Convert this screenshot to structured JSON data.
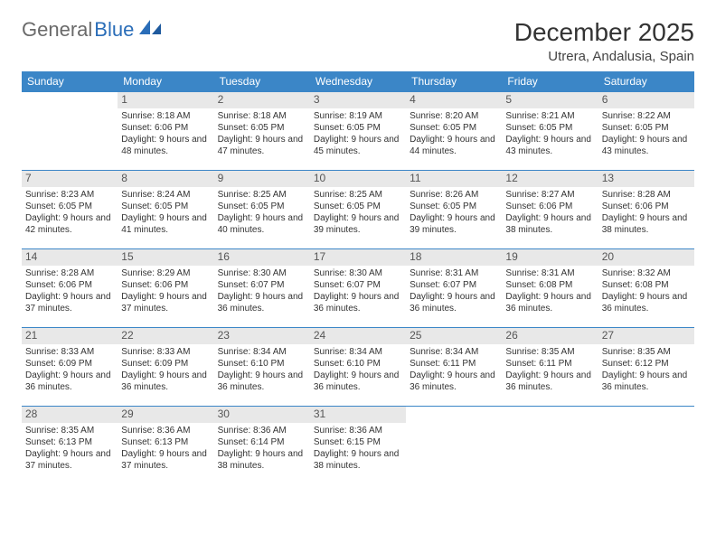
{
  "brand": {
    "part1": "General",
    "part2": "Blue"
  },
  "title": "December 2025",
  "location": "Utrera, Andalusia, Spain",
  "colors": {
    "header_bg": "#3b86c7",
    "header_text": "#ffffff",
    "daynum_bg": "#e8e8e8",
    "border": "#3b86c7",
    "text": "#333333"
  },
  "weekdays": [
    "Sunday",
    "Monday",
    "Tuesday",
    "Wednesday",
    "Thursday",
    "Friday",
    "Saturday"
  ],
  "weeks": [
    [
      {
        "n": "",
        "sr": "",
        "ss": "",
        "dl": ""
      },
      {
        "n": "1",
        "sr": "8:18 AM",
        "ss": "6:06 PM",
        "dl": "9 hours and 48 minutes."
      },
      {
        "n": "2",
        "sr": "8:18 AM",
        "ss": "6:05 PM",
        "dl": "9 hours and 47 minutes."
      },
      {
        "n": "3",
        "sr": "8:19 AM",
        "ss": "6:05 PM",
        "dl": "9 hours and 45 minutes."
      },
      {
        "n": "4",
        "sr": "8:20 AM",
        "ss": "6:05 PM",
        "dl": "9 hours and 44 minutes."
      },
      {
        "n": "5",
        "sr": "8:21 AM",
        "ss": "6:05 PM",
        "dl": "9 hours and 43 minutes."
      },
      {
        "n": "6",
        "sr": "8:22 AM",
        "ss": "6:05 PM",
        "dl": "9 hours and 43 minutes."
      }
    ],
    [
      {
        "n": "7",
        "sr": "8:23 AM",
        "ss": "6:05 PM",
        "dl": "9 hours and 42 minutes."
      },
      {
        "n": "8",
        "sr": "8:24 AM",
        "ss": "6:05 PM",
        "dl": "9 hours and 41 minutes."
      },
      {
        "n": "9",
        "sr": "8:25 AM",
        "ss": "6:05 PM",
        "dl": "9 hours and 40 minutes."
      },
      {
        "n": "10",
        "sr": "8:25 AM",
        "ss": "6:05 PM",
        "dl": "9 hours and 39 minutes."
      },
      {
        "n": "11",
        "sr": "8:26 AM",
        "ss": "6:05 PM",
        "dl": "9 hours and 39 minutes."
      },
      {
        "n": "12",
        "sr": "8:27 AM",
        "ss": "6:06 PM",
        "dl": "9 hours and 38 minutes."
      },
      {
        "n": "13",
        "sr": "8:28 AM",
        "ss": "6:06 PM",
        "dl": "9 hours and 38 minutes."
      }
    ],
    [
      {
        "n": "14",
        "sr": "8:28 AM",
        "ss": "6:06 PM",
        "dl": "9 hours and 37 minutes."
      },
      {
        "n": "15",
        "sr": "8:29 AM",
        "ss": "6:06 PM",
        "dl": "9 hours and 37 minutes."
      },
      {
        "n": "16",
        "sr": "8:30 AM",
        "ss": "6:07 PM",
        "dl": "9 hours and 36 minutes."
      },
      {
        "n": "17",
        "sr": "8:30 AM",
        "ss": "6:07 PM",
        "dl": "9 hours and 36 minutes."
      },
      {
        "n": "18",
        "sr": "8:31 AM",
        "ss": "6:07 PM",
        "dl": "9 hours and 36 minutes."
      },
      {
        "n": "19",
        "sr": "8:31 AM",
        "ss": "6:08 PM",
        "dl": "9 hours and 36 minutes."
      },
      {
        "n": "20",
        "sr": "8:32 AM",
        "ss": "6:08 PM",
        "dl": "9 hours and 36 minutes."
      }
    ],
    [
      {
        "n": "21",
        "sr": "8:33 AM",
        "ss": "6:09 PM",
        "dl": "9 hours and 36 minutes."
      },
      {
        "n": "22",
        "sr": "8:33 AM",
        "ss": "6:09 PM",
        "dl": "9 hours and 36 minutes."
      },
      {
        "n": "23",
        "sr": "8:34 AM",
        "ss": "6:10 PM",
        "dl": "9 hours and 36 minutes."
      },
      {
        "n": "24",
        "sr": "8:34 AM",
        "ss": "6:10 PM",
        "dl": "9 hours and 36 minutes."
      },
      {
        "n": "25",
        "sr": "8:34 AM",
        "ss": "6:11 PM",
        "dl": "9 hours and 36 minutes."
      },
      {
        "n": "26",
        "sr": "8:35 AM",
        "ss": "6:11 PM",
        "dl": "9 hours and 36 minutes."
      },
      {
        "n": "27",
        "sr": "8:35 AM",
        "ss": "6:12 PM",
        "dl": "9 hours and 36 minutes."
      }
    ],
    [
      {
        "n": "28",
        "sr": "8:35 AM",
        "ss": "6:13 PM",
        "dl": "9 hours and 37 minutes."
      },
      {
        "n": "29",
        "sr": "8:36 AM",
        "ss": "6:13 PM",
        "dl": "9 hours and 37 minutes."
      },
      {
        "n": "30",
        "sr": "8:36 AM",
        "ss": "6:14 PM",
        "dl": "9 hours and 38 minutes."
      },
      {
        "n": "31",
        "sr": "8:36 AM",
        "ss": "6:15 PM",
        "dl": "9 hours and 38 minutes."
      },
      {
        "n": "",
        "sr": "",
        "ss": "",
        "dl": ""
      },
      {
        "n": "",
        "sr": "",
        "ss": "",
        "dl": ""
      },
      {
        "n": "",
        "sr": "",
        "ss": "",
        "dl": ""
      }
    ]
  ],
  "labels": {
    "sunrise": "Sunrise:",
    "sunset": "Sunset:",
    "daylight": "Daylight:"
  }
}
